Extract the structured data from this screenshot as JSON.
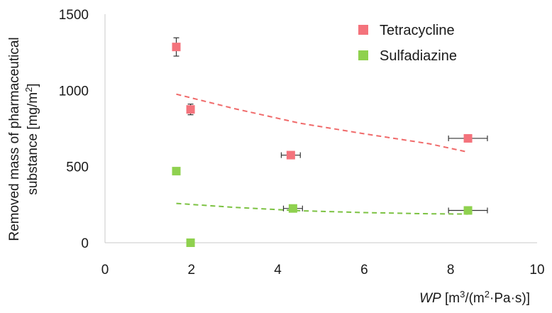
{
  "chart_data": {
    "type": "scatter",
    "title": "",
    "xlim": [
      0,
      10
    ],
    "ylim": [
      0,
      1500
    ],
    "x_ticks": [
      0,
      2,
      4,
      6,
      8,
      10
    ],
    "y_ticks": [
      0,
      500,
      1000,
      1500
    ],
    "x_tick_labels": [
      "0",
      "2",
      "4",
      "6",
      "8",
      "10"
    ],
    "y_tick_labels": [
      "0",
      "500",
      "1000",
      "1500"
    ],
    "xlabel": {
      "italic": "WP",
      "pre": " [m",
      "sup1": "3",
      "mid": "/(m",
      "sup2": "2",
      "post": "·Pa·s)]"
    },
    "ylabel": {
      "line1": "Removed mass of pharmaceutical",
      "line2_pre": "substance [mg/m",
      "line2_sup": "2",
      "line2_post": "]"
    },
    "grid": false,
    "legend_position": "top-right",
    "series": [
      {
        "name": "Tetracycline",
        "color": "#f4737c",
        "trend_color": "#f06a6a",
        "points": [
          {
            "x": 1.65,
            "y": 1285,
            "yerr": 60,
            "xerr": 0
          },
          {
            "x": 1.98,
            "y": 875,
            "yerr": 35,
            "xerr": 0
          },
          {
            "x": 4.3,
            "y": 575,
            "yerr": 0,
            "xerr": 0.22
          },
          {
            "x": 8.4,
            "y": 685,
            "yerr": 0,
            "xerr": 0.45
          }
        ],
        "trend": [
          [
            1.65,
            975
          ],
          [
            3,
            880
          ],
          [
            4.5,
            785
          ],
          [
            6,
            715
          ],
          [
            7.5,
            650
          ],
          [
            8.4,
            595
          ]
        ]
      },
      {
        "name": "Sulfadiazine",
        "color": "#8fd14f",
        "trend_color": "#7cc242",
        "points": [
          {
            "x": 1.65,
            "y": 470,
            "yerr": 0,
            "xerr": 0
          },
          {
            "x": 1.98,
            "y": 0,
            "yerr": 0,
            "xerr": 0
          },
          {
            "x": 4.35,
            "y": 225,
            "yerr": 0,
            "xerr": 0.22
          },
          {
            "x": 8.4,
            "y": 212,
            "yerr": 0,
            "xerr": 0.45
          }
        ],
        "trend": [
          [
            1.65,
            258
          ],
          [
            3,
            232
          ],
          [
            4.5,
            210
          ],
          [
            6,
            198
          ],
          [
            7.5,
            190
          ],
          [
            8.4,
            188
          ]
        ]
      }
    ]
  }
}
